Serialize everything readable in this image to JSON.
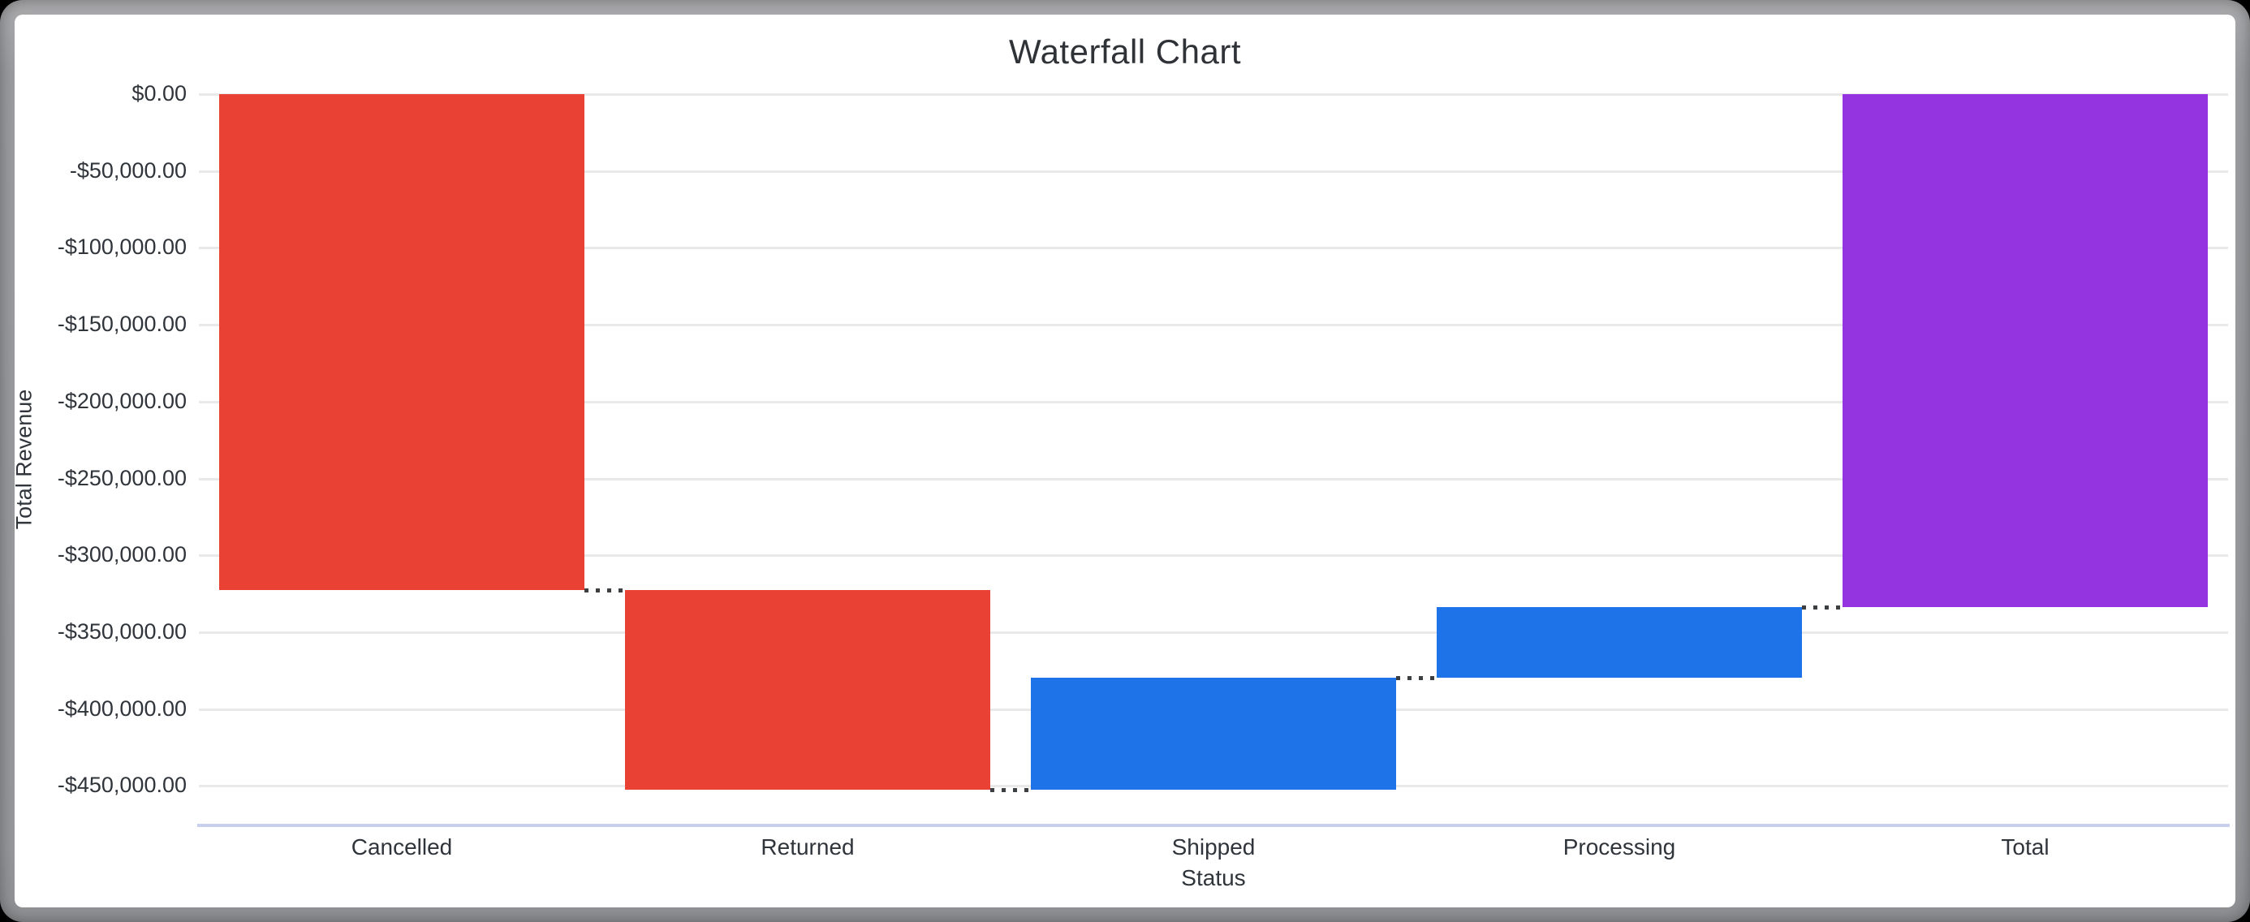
{
  "window": {
    "background_color": "#000000",
    "frame_color": "#9a9c9f",
    "card_color": "#ffffff"
  },
  "chart_data": {
    "type": "waterfall",
    "title": "Waterfall Chart",
    "xlabel": "Status",
    "ylabel": "Total Revenue",
    "grid": true,
    "legend": false,
    "connector_style": "dotted",
    "categories": [
      "Cancelled",
      "Returned",
      "Shipped",
      "Processing",
      "Total"
    ],
    "series": [
      {
        "name": "Cancelled",
        "delta": -322500,
        "start": 0,
        "end": -322500,
        "role": "decrease",
        "color": "#e94235"
      },
      {
        "name": "Returned",
        "delta": -130000,
        "start": -322500,
        "end": -452500,
        "role": "decrease",
        "color": "#e94235"
      },
      {
        "name": "Shipped",
        "delta": 73000,
        "start": -452500,
        "end": -379500,
        "role": "increase",
        "color": "#1e73e8"
      },
      {
        "name": "Processing",
        "delta": 46000,
        "start": -379500,
        "end": -333500,
        "role": "increase",
        "color": "#1e73e8"
      },
      {
        "name": "Total",
        "delta": -333500,
        "start": 0,
        "end": -333500,
        "role": "total",
        "color": "#9334e0"
      }
    ],
    "y_axis": {
      "max": 0,
      "min": -450000,
      "tick_step": 50000,
      "tick_labels": [
        "$0.00",
        "-$50,000.00",
        "-$100,000.00",
        "-$150,000.00",
        "-$200,000.00",
        "-$250,000.00",
        "-$300,000.00",
        "-$350,000.00",
        "-$400,000.00",
        "-$450,000.00"
      ]
    },
    "colors": {
      "decrease": "#e94235",
      "increase": "#1e73e8",
      "total": "#9334e0",
      "gridline": "#e9e9e9",
      "axis_line": "#c7d1ef",
      "connector": "#3c4043",
      "text": "#2f353b"
    }
  }
}
